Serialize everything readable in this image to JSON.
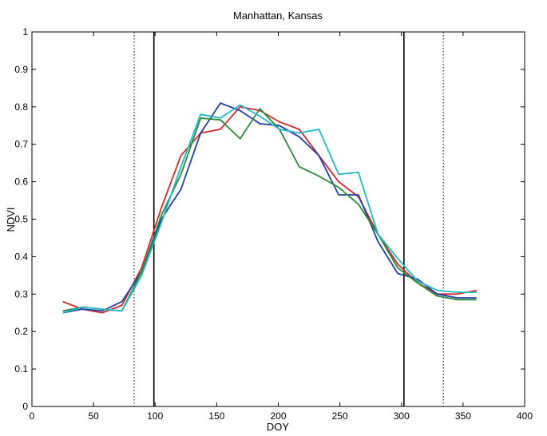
{
  "chart_data": {
    "type": "line",
    "title": "Manhattan, Kansas",
    "xlabel": "DOY",
    "ylabel": "NDVI",
    "xlim": [
      0,
      400
    ],
    "ylim": [
      0,
      1
    ],
    "xticks": [
      0,
      50,
      100,
      150,
      200,
      250,
      300,
      350,
      400
    ],
    "yticks": [
      0,
      0.1,
      0.2,
      0.3,
      0.4,
      0.5,
      0.6,
      0.7,
      0.8,
      0.9,
      1
    ],
    "grid": false,
    "legend": "none",
    "series": [
      {
        "color": "#d62728",
        "x": [
          25,
          41,
          57,
          73,
          89,
          105,
          121,
          137,
          153,
          169,
          185,
          201,
          217,
          233,
          249,
          265,
          281,
          297,
          313,
          329,
          345,
          361
        ],
        "y": [
          0.28,
          0.26,
          0.25,
          0.27,
          0.37,
          0.53,
          0.67,
          0.73,
          0.74,
          0.8,
          0.79,
          0.76,
          0.74,
          0.67,
          0.6,
          0.56,
          0.46,
          0.38,
          0.33,
          0.3,
          0.3,
          0.31
        ]
      },
      {
        "color": "#1f3fa8",
        "x": [
          25,
          41,
          57,
          73,
          89,
          105,
          121,
          137,
          153,
          169,
          185,
          201,
          217,
          233,
          249,
          265,
          281,
          297,
          313,
          329,
          345,
          361
        ],
        "y": [
          0.25,
          0.26,
          0.255,
          0.28,
          0.36,
          0.5,
          0.58,
          0.73,
          0.81,
          0.79,
          0.755,
          0.75,
          0.72,
          0.67,
          0.565,
          0.565,
          0.44,
          0.355,
          0.34,
          0.3,
          0.29,
          0.29
        ]
      },
      {
        "color": "#2a8a3a",
        "x": [
          25,
          41,
          57,
          73,
          89,
          105,
          121,
          137,
          153,
          169,
          185,
          201,
          217,
          233,
          249,
          265,
          281,
          297,
          313,
          329,
          345,
          361
        ],
        "y": [
          0.255,
          0.265,
          0.26,
          0.255,
          0.36,
          0.51,
          0.62,
          0.77,
          0.765,
          0.715,
          0.795,
          0.74,
          0.64,
          0.615,
          0.585,
          0.54,
          0.46,
          0.37,
          0.33,
          0.295,
          0.285,
          0.285
        ]
      },
      {
        "color": "#1fb8c4",
        "x": [
          25,
          41,
          57,
          73,
          89,
          105,
          121,
          137,
          153,
          169,
          185,
          201,
          217,
          233,
          249,
          265,
          281,
          297,
          313,
          329,
          345,
          361
        ],
        "y": [
          0.25,
          0.265,
          0.26,
          0.255,
          0.35,
          0.49,
          0.64,
          0.78,
          0.77,
          0.805,
          0.775,
          0.74,
          0.73,
          0.74,
          0.62,
          0.625,
          0.46,
          0.395,
          0.335,
          0.31,
          0.305,
          0.305
        ]
      }
    ],
    "vertical_lines": [
      {
        "x": 83,
        "style": "dotted"
      },
      {
        "x": 99,
        "style": "solid"
      },
      {
        "x": 302,
        "style": "solid"
      },
      {
        "x": 334,
        "style": "dotted"
      }
    ]
  }
}
